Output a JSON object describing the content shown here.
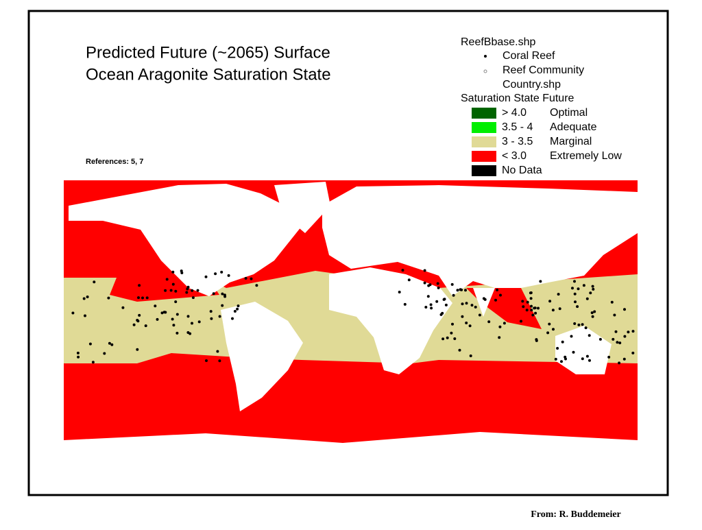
{
  "title": [
    "Predicted Future (~2065) Surface",
    "Ocean Aragonite Saturation State"
  ],
  "references": "References:  5, 7",
  "legend": {
    "reef_layer": "ReefBbase.shp",
    "reef_types": [
      "Coral Reef",
      "Reef Community"
    ],
    "country_layer": "Country.shp",
    "saturation_title": "Saturation State Future",
    "classes": [
      {
        "range": "> 4.0",
        "label": "Optimal",
        "color": "#006400"
      },
      {
        "range": "3.5 - 4",
        "label": "Adequate",
        "color": "#00ee00"
      },
      {
        "range": "3 - 3.5",
        "label": "Marginal",
        "color": "#e0da96"
      },
      {
        "range": "< 3.0",
        "label": "Extremely Low",
        "color": "#ff0000"
      },
      {
        "label": "No Data",
        "color": "#000000"
      }
    ]
  },
  "footer": "From: R. Buddemeier"
}
